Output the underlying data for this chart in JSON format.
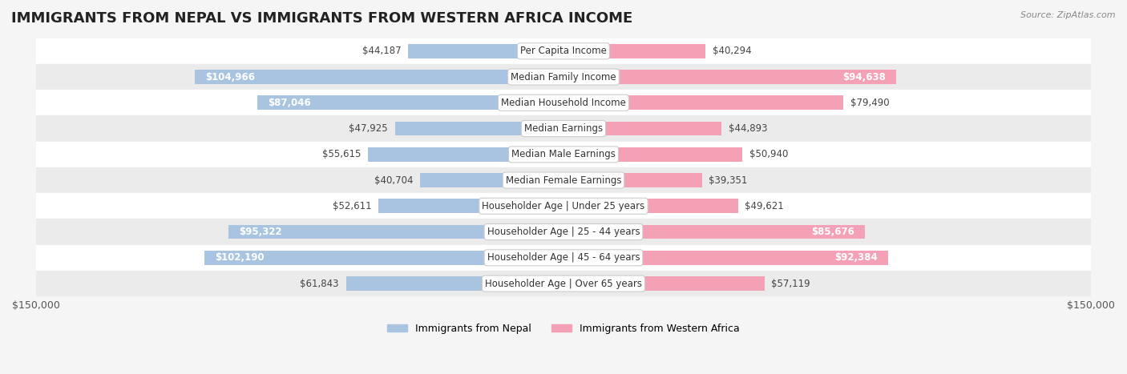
{
  "title": "IMMIGRANTS FROM NEPAL VS IMMIGRANTS FROM WESTERN AFRICA INCOME",
  "source": "Source: ZipAtlas.com",
  "categories": [
    "Per Capita Income",
    "Median Family Income",
    "Median Household Income",
    "Median Earnings",
    "Median Male Earnings",
    "Median Female Earnings",
    "Householder Age | Under 25 years",
    "Householder Age | 25 - 44 years",
    "Householder Age | 45 - 64 years",
    "Householder Age | Over 65 years"
  ],
  "nepal_values": [
    44187,
    104966,
    87046,
    47925,
    55615,
    40704,
    52611,
    95322,
    102190,
    61843
  ],
  "western_africa_values": [
    40294,
    94638,
    79490,
    44893,
    50940,
    39351,
    49621,
    85676,
    92384,
    57119
  ],
  "nepal_labels": [
    "$44,187",
    "$104,966",
    "$87,046",
    "$47,925",
    "$55,615",
    "$40,704",
    "$52,611",
    "$95,322",
    "$102,190",
    "$61,843"
  ],
  "western_africa_labels": [
    "$40,294",
    "$94,638",
    "$79,490",
    "$44,893",
    "$50,940",
    "$39,351",
    "$49,621",
    "$85,676",
    "$92,384",
    "$57,119"
  ],
  "nepal_color": "#a8c4e0",
  "western_africa_color": "#f4a0b5",
  "inside_text_threshold": 80000,
  "max_value": 150000,
  "legend_nepal": "Immigrants from Nepal",
  "legend_western_africa": "Immigrants from Western Africa",
  "background_color": "#f5f5f5",
  "bar_height": 0.55,
  "title_fontsize": 13,
  "label_fontsize": 8.5,
  "category_fontsize": 8.5,
  "row_colors": [
    "#ffffff",
    "#ebebeb"
  ]
}
